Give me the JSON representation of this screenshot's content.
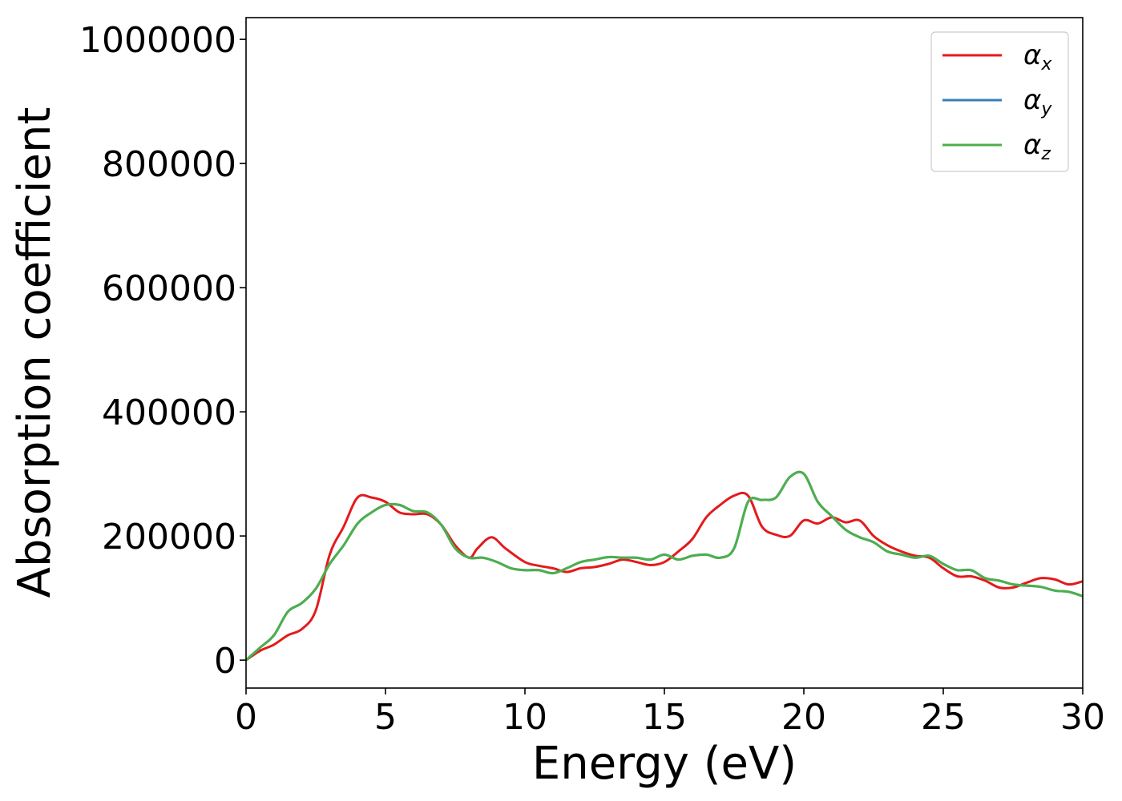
{
  "chart_data": {
    "type": "line",
    "title": "",
    "xlabel": "Energy (eV)",
    "ylabel": "Absorption coefficient",
    "xlim": [
      0,
      30
    ],
    "ylim": [
      -45000,
      1035000
    ],
    "xticks": [
      "0",
      "5",
      "10",
      "15",
      "20",
      "25",
      "30"
    ],
    "xtick_values": [
      0,
      5,
      10,
      15,
      20,
      25,
      30
    ],
    "yticks": [
      "0",
      "200000",
      "400000",
      "600000",
      "800000",
      "1000000"
    ],
    "ytick_values": [
      0,
      200000,
      400000,
      600000,
      800000,
      1000000
    ],
    "grid": false,
    "legend_position": "top-right",
    "series": [
      {
        "name": "αx",
        "name_base": "α",
        "name_sub": "x",
        "color": "#e41a1c",
        "x": [
          0,
          0.5,
          1,
          1.5,
          2,
          2.5,
          3,
          3.5,
          4,
          4.5,
          5,
          5.5,
          6,
          6.5,
          7,
          7.5,
          8,
          8.3,
          8.8,
          9.3,
          10,
          10.5,
          11,
          11.5,
          12,
          12.5,
          13,
          13.5,
          14,
          14.5,
          15,
          15.5,
          16,
          16.5,
          17,
          17.5,
          18,
          18.5,
          19,
          19.5,
          20,
          20.5,
          21,
          21.5,
          22,
          22.5,
          23,
          23.5,
          24,
          24.5,
          25,
          25.5,
          26,
          26.5,
          27,
          27.5,
          28,
          28.5,
          29,
          29.5,
          30
        ],
        "values": [
          0,
          15000,
          25000,
          40000,
          50000,
          80000,
          170000,
          215000,
          262000,
          262000,
          255000,
          238000,
          235000,
          235000,
          218000,
          185000,
          165000,
          180000,
          198000,
          180000,
          158000,
          152000,
          148000,
          142000,
          148000,
          150000,
          155000,
          162000,
          158000,
          153000,
          158000,
          175000,
          195000,
          230000,
          250000,
          265000,
          265000,
          215000,
          202000,
          200000,
          225000,
          220000,
          230000,
          222000,
          225000,
          200000,
          185000,
          175000,
          168000,
          165000,
          148000,
          135000,
          135000,
          128000,
          117000,
          117000,
          125000,
          132000,
          130000,
          122000,
          127000
        ]
      },
      {
        "name": "αy",
        "name_base": "α",
        "name_sub": "y",
        "color": "#377eb8",
        "x": [
          0,
          0.5,
          1,
          1.5,
          2,
          2.5,
          3,
          3.5,
          4,
          4.5,
          5,
          5.5,
          6,
          6.5,
          7,
          7.5,
          8,
          8.5,
          9,
          9.5,
          10,
          10.5,
          11,
          11.5,
          12,
          12.5,
          13,
          13.5,
          14,
          14.5,
          15,
          15.5,
          16,
          16.5,
          17,
          17.5,
          18,
          18.5,
          19,
          19.5,
          20,
          20.5,
          21,
          21.5,
          22,
          22.5,
          23,
          23.5,
          24,
          24.5,
          25,
          25.5,
          26,
          26.5,
          27,
          27.5,
          28,
          28.5,
          29,
          29.5,
          30
        ],
        "values": [
          0,
          20000,
          40000,
          78000,
          92000,
          115000,
          155000,
          185000,
          220000,
          238000,
          250000,
          250000,
          240000,
          238000,
          218000,
          180000,
          165000,
          165000,
          158000,
          148000,
          145000,
          145000,
          140000,
          148000,
          158000,
          162000,
          166000,
          165000,
          165000,
          162000,
          170000,
          162000,
          168000,
          170000,
          165000,
          180000,
          255000,
          258000,
          262000,
          295000,
          300000,
          255000,
          232000,
          210000,
          198000,
          190000,
          175000,
          170000,
          165000,
          168000,
          155000,
          145000,
          145000,
          132000,
          128000,
          122000,
          120000,
          118000,
          112000,
          110000,
          103000
        ]
      },
      {
        "name": "αz",
        "name_base": "α",
        "name_sub": "z",
        "color": "#4daf4a",
        "x": [
          0,
          0.5,
          1,
          1.5,
          2,
          2.5,
          3,
          3.5,
          4,
          4.5,
          5,
          5.5,
          6,
          6.5,
          7,
          7.5,
          8,
          8.5,
          9,
          9.5,
          10,
          10.5,
          11,
          11.5,
          12,
          12.5,
          13,
          13.5,
          14,
          14.5,
          15,
          15.5,
          16,
          16.5,
          17,
          17.5,
          18,
          18.5,
          19,
          19.5,
          20,
          20.5,
          21,
          21.5,
          22,
          22.5,
          23,
          23.5,
          24,
          24.5,
          25,
          25.5,
          26,
          26.5,
          27,
          27.5,
          28,
          28.5,
          29,
          29.5,
          30
        ],
        "values": [
          0,
          20000,
          40000,
          78000,
          92000,
          115000,
          155000,
          185000,
          220000,
          238000,
          250000,
          250000,
          240000,
          238000,
          218000,
          180000,
          165000,
          165000,
          158000,
          148000,
          145000,
          145000,
          140000,
          148000,
          158000,
          162000,
          166000,
          165000,
          165000,
          162000,
          170000,
          162000,
          168000,
          170000,
          165000,
          180000,
          255000,
          258000,
          262000,
          295000,
          300000,
          255000,
          232000,
          210000,
          198000,
          190000,
          175000,
          170000,
          165000,
          168000,
          155000,
          145000,
          145000,
          132000,
          128000,
          122000,
          120000,
          118000,
          112000,
          110000,
          103000
        ]
      }
    ]
  }
}
